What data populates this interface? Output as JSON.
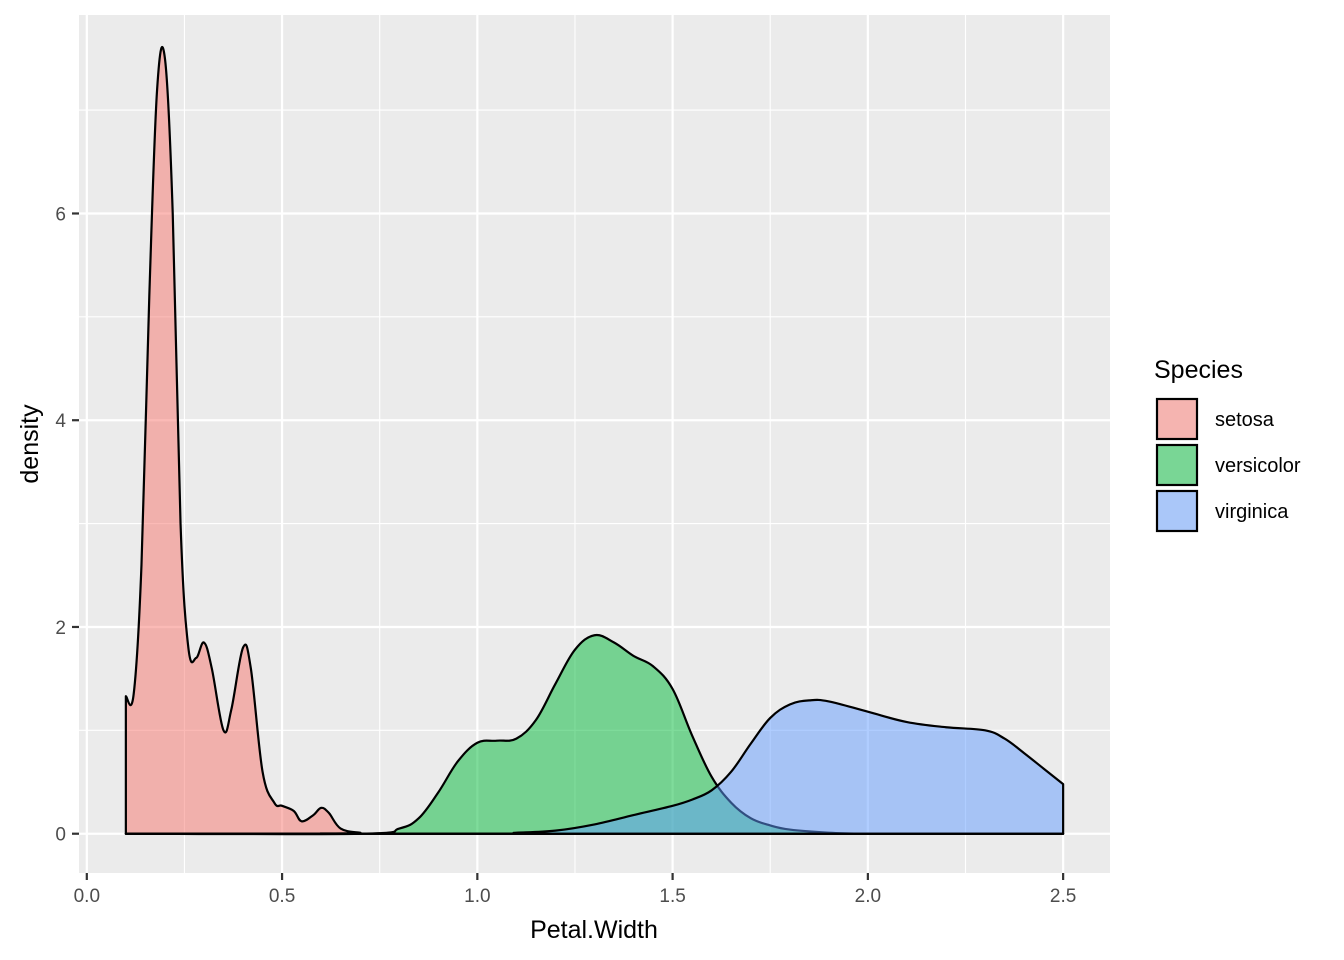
{
  "chart_data": {
    "type": "area",
    "xlabel": "Petal.Width",
    "ylabel": "density",
    "xlim": [
      -0.02,
      2.62
    ],
    "ylim": [
      -0.38,
      7.92
    ],
    "x_ticks": [
      0.0,
      0.5,
      1.0,
      1.5,
      2.0,
      2.5
    ],
    "x_tick_labels": [
      "0.0",
      "0.5",
      "1.0",
      "1.5",
      "2.0",
      "2.5"
    ],
    "y_ticks": [
      0,
      2,
      4,
      6
    ],
    "y_tick_labels": [
      "0",
      "2",
      "4",
      "6"
    ],
    "grid": true,
    "legend": {
      "title": "Species",
      "position": "right"
    },
    "series": [
      {
        "name": "setosa",
        "color": "#F8766D",
        "x": [
          0.1,
          0.12,
          0.14,
          0.16,
          0.18,
          0.2,
          0.22,
          0.24,
          0.26,
          0.28,
          0.3,
          0.32,
          0.35,
          0.37,
          0.4,
          0.42,
          0.45,
          0.48,
          0.5,
          0.53,
          0.55,
          0.58,
          0.6,
          0.62,
          0.65,
          0.7,
          0.75,
          2.5
        ],
        "y": [
          1.33,
          1.35,
          2.6,
          5.2,
          7.2,
          7.5,
          6.0,
          3.0,
          1.8,
          1.7,
          1.85,
          1.6,
          1.0,
          1.2,
          1.8,
          1.6,
          0.6,
          0.3,
          0.27,
          0.22,
          0.12,
          0.18,
          0.25,
          0.2,
          0.05,
          0.01,
          0.0,
          0.0
        ]
      },
      {
        "name": "versicolor",
        "color": "#00BA38",
        "x": [
          0.1,
          0.7,
          0.8,
          0.85,
          0.9,
          0.95,
          1.0,
          1.05,
          1.1,
          1.15,
          1.2,
          1.25,
          1.3,
          1.35,
          1.4,
          1.45,
          1.5,
          1.55,
          1.6,
          1.65,
          1.7,
          1.75,
          1.8,
          1.9,
          2.0,
          2.1,
          2.5
        ],
        "y": [
          0.0,
          0.0,
          0.05,
          0.15,
          0.4,
          0.7,
          0.88,
          0.9,
          0.92,
          1.1,
          1.45,
          1.78,
          1.92,
          1.85,
          1.72,
          1.62,
          1.4,
          0.95,
          0.55,
          0.3,
          0.15,
          0.08,
          0.04,
          0.01,
          0.0,
          0.0,
          0.0
        ]
      },
      {
        "name": "virginica",
        "color": "#619CFF",
        "x": [
          0.1,
          1.0,
          1.1,
          1.2,
          1.3,
          1.4,
          1.5,
          1.55,
          1.6,
          1.65,
          1.7,
          1.75,
          1.8,
          1.85,
          1.9,
          2.0,
          2.1,
          2.2,
          2.3,
          2.35,
          2.4,
          2.45,
          2.5
        ],
        "y": [
          0.0,
          0.0,
          0.01,
          0.03,
          0.09,
          0.18,
          0.27,
          0.33,
          0.42,
          0.6,
          0.87,
          1.12,
          1.25,
          1.29,
          1.28,
          1.18,
          1.08,
          1.03,
          1.0,
          0.92,
          0.78,
          0.63,
          0.48
        ]
      }
    ]
  }
}
